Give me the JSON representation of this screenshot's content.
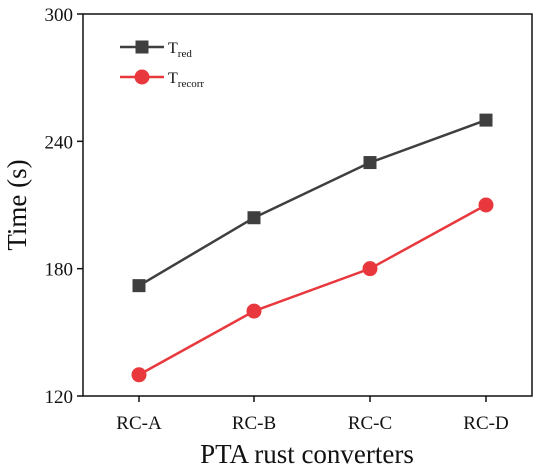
{
  "chart_data": {
    "type": "line",
    "title": "",
    "xlabel": "PTA rust converters",
    "ylabel": "Time (s)",
    "categories": [
      "RC-A",
      "RC-B",
      "RC-C",
      "RC-D"
    ],
    "ylim": [
      120,
      300
    ],
    "yticks": [
      "120",
      "180",
      "240",
      "300"
    ],
    "grid": false,
    "legend_position": "top-left",
    "series": [
      {
        "name": "T",
        "name_subscript": "red",
        "marker": "square",
        "color": "#3f3f3f",
        "values": [
          172,
          204,
          230,
          250
        ]
      },
      {
        "name": "T",
        "name_subscript": "recorr",
        "marker": "circle",
        "color": "#e8383d",
        "values": [
          130,
          160,
          180,
          210
        ]
      }
    ]
  }
}
